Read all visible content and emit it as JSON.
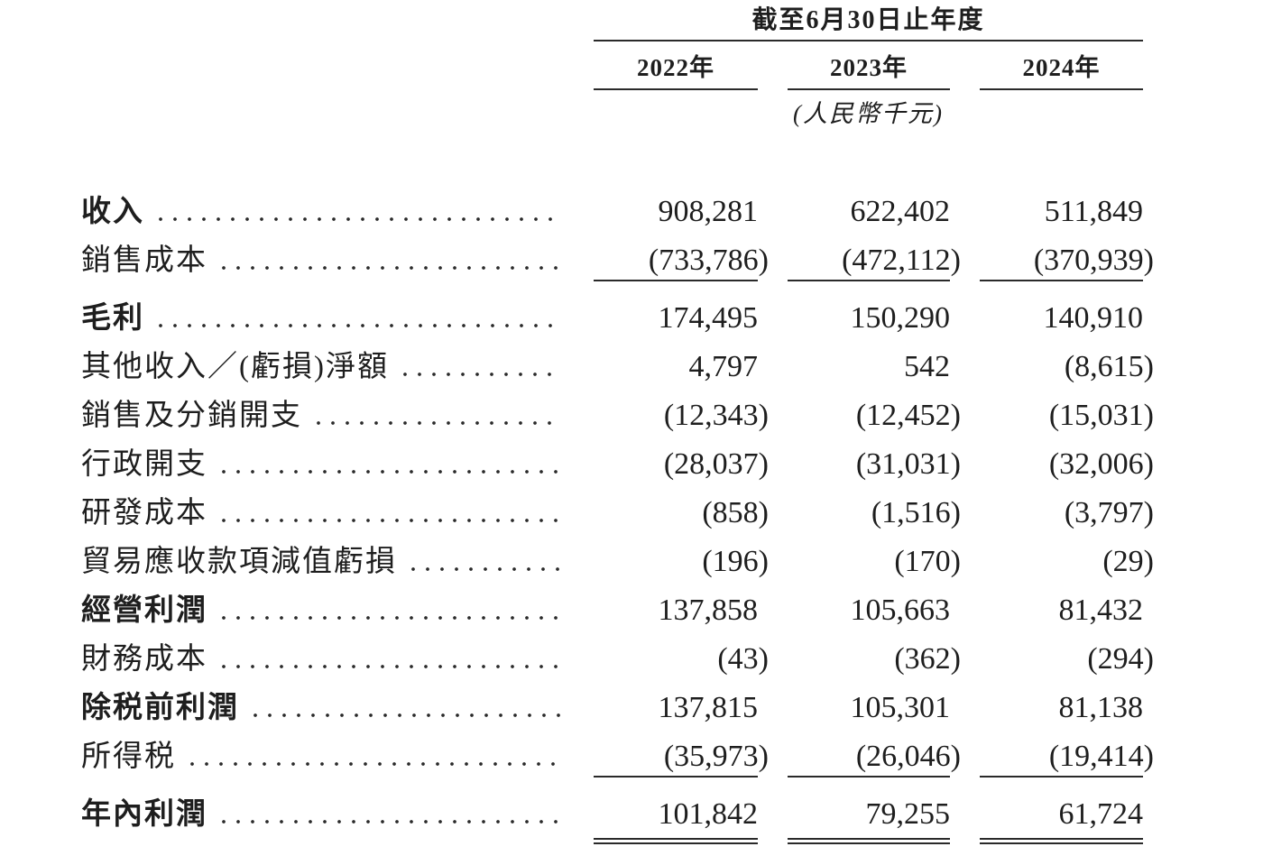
{
  "document_type": "income-statement-table",
  "language": "zh-Hant",
  "colors": {
    "text": "#1e1e1e",
    "line": "#2a2a2a",
    "background": "#ffffff"
  },
  "header": {
    "period_title": "截至6月30日止年度",
    "columns": [
      "2022年",
      "2023年",
      "2024年"
    ],
    "unit_note": "(人民幣千元)"
  },
  "table": {
    "rows": [
      {
        "label": "收入",
        "bold": true,
        "values": [
          "908,281",
          "622,402",
          "511,849"
        ],
        "rule_after": "none"
      },
      {
        "label": "銷售成本",
        "bold": false,
        "values": [
          "(733,786)",
          "(472,112)",
          "(370,939)"
        ],
        "rule_after": "single"
      },
      {
        "label": "毛利",
        "bold": true,
        "values": [
          "174,495",
          "150,290",
          "140,910"
        ],
        "rule_after": "none"
      },
      {
        "label": "其他收入／(虧損)淨額",
        "bold": false,
        "values": [
          "4,797",
          "542",
          "(8,615)"
        ],
        "rule_after": "none"
      },
      {
        "label": "銷售及分銷開支",
        "bold": false,
        "values": [
          "(12,343)",
          "(12,452)",
          "(15,031)"
        ],
        "rule_after": "none"
      },
      {
        "label": "行政開支",
        "bold": false,
        "values": [
          "(28,037)",
          "(31,031)",
          "(32,006)"
        ],
        "rule_after": "none"
      },
      {
        "label": "研發成本",
        "bold": false,
        "values": [
          "(858)",
          "(1,516)",
          "(3,797)"
        ],
        "rule_after": "none"
      },
      {
        "label": "貿易應收款項減值虧損",
        "bold": false,
        "values": [
          "(196)",
          "(170)",
          "(29)"
        ],
        "rule_after": "none"
      },
      {
        "label": "經營利潤",
        "bold": true,
        "values": [
          "137,858",
          "105,663",
          "81,432"
        ],
        "rule_after": "none"
      },
      {
        "label": "財務成本",
        "bold": false,
        "values": [
          "(43)",
          "(362)",
          "(294)"
        ],
        "rule_after": "none"
      },
      {
        "label": "除税前利潤",
        "bold": true,
        "values": [
          "137,815",
          "105,301",
          "81,138"
        ],
        "rule_after": "none"
      },
      {
        "label": "所得税",
        "bold": false,
        "values": [
          "(35,973)",
          "(26,046)",
          "(19,414)"
        ],
        "rule_after": "single"
      },
      {
        "label": "年內利潤",
        "bold": true,
        "values": [
          "101,842",
          "79,255",
          "61,724"
        ],
        "rule_after": "double"
      }
    ]
  }
}
